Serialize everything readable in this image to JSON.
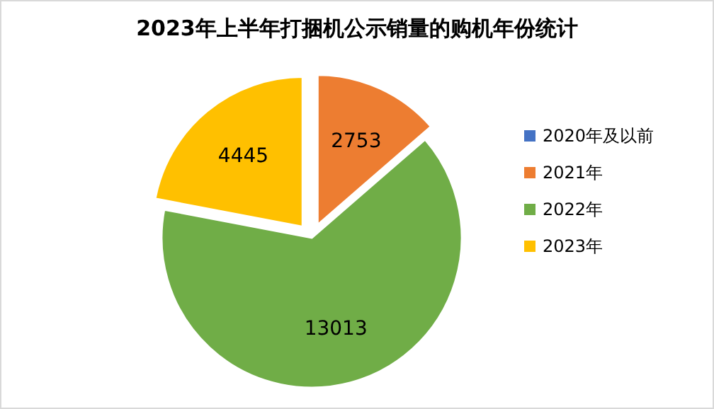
{
  "chart_data": {
    "type": "pie",
    "title": "2023年上半年打捆机公示销量的购机年份统计",
    "categories": [
      "2020年及以前",
      "2021年",
      "2022年",
      "2023年"
    ],
    "values": [
      0,
      2753,
      13013,
      4445
    ],
    "colors": [
      "#4472c4",
      "#ed7d31",
      "#70ad47",
      "#ffc000"
    ],
    "value_labels": [
      null,
      "2753",
      "13013",
      "4445"
    ],
    "legend": "right"
  }
}
